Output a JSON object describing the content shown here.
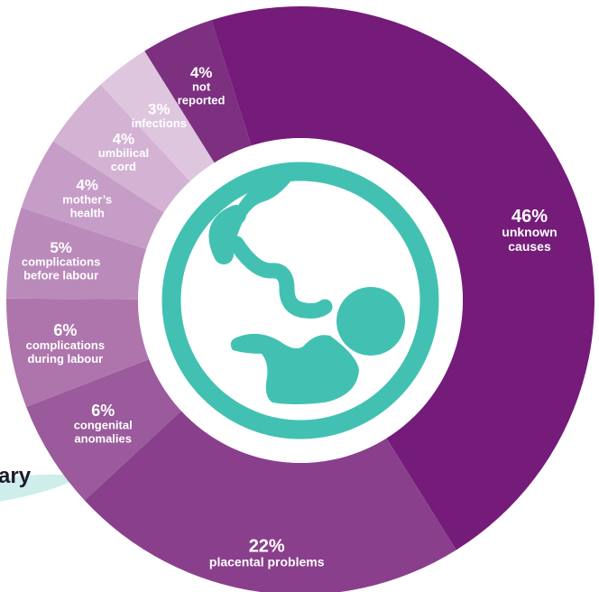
{
  "fragment": {
    "text": "ary"
  },
  "colors": {
    "teal": "#42c1b3",
    "slices": [
      "#751b7a",
      "#8a3f8c",
      "#9a5a9c",
      "#ae75ad",
      "#ba8abb",
      "#c69dc7",
      "#d3b2d3",
      "#dfc6df",
      "#7d2f80"
    ]
  },
  "icon": "fetus-with-umbilical-cord-icon",
  "chart_data": {
    "type": "pie",
    "donut": true,
    "title": "",
    "slices": [
      {
        "percent_label": "46%",
        "lines": [
          "unknown",
          "causes"
        ],
        "value": 46
      },
      {
        "percent_label": "22%",
        "lines": [
          "placental problems"
        ],
        "value": 22
      },
      {
        "percent_label": "6%",
        "lines": [
          "congenital",
          "anomalies"
        ],
        "value": 6
      },
      {
        "percent_label": "6%",
        "lines": [
          "complications",
          "during labour"
        ],
        "value": 6
      },
      {
        "percent_label": "5%",
        "lines": [
          "complications",
          "before labour"
        ],
        "value": 5
      },
      {
        "percent_label": "4%",
        "lines": [
          "mother’s",
          "health"
        ],
        "value": 4
      },
      {
        "percent_label": "4%",
        "lines": [
          "umbilical",
          "cord"
        ],
        "value": 4
      },
      {
        "percent_label": "3%",
        "lines": [
          "infections"
        ],
        "value": 3
      },
      {
        "percent_label": "4%",
        "lines": [
          "not",
          "reported"
        ],
        "value": 4
      }
    ]
  }
}
